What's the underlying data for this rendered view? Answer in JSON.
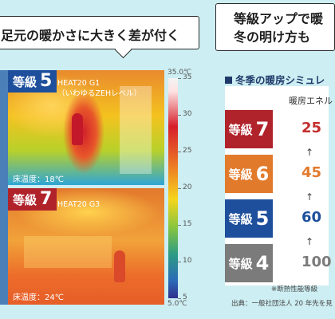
{
  "headline_left": "足元の暖かさに大きく差が付く",
  "headline_right": [
    "等級アップで暖",
    "冬の明け方も"
  ],
  "panels": [
    {
      "grade_prefix": "等級",
      "grade_num": "5",
      "label": [
        "HEAT20 G1",
        "（いわゆるZEHレベル）"
      ],
      "floor_temp": "床温度：18℃",
      "tag_color": "#1e4f9c"
    },
    {
      "grade_prefix": "等級",
      "grade_num": "7",
      "label": [
        "HEAT20 G3"
      ],
      "floor_temp": "床温度：24℃",
      "tag_color": "#b0232b"
    }
  ],
  "scale": {
    "max": "35.0℃",
    "min": "5.0℃",
    "ticks": [
      "35",
      "30",
      "25",
      "20",
      "15",
      "10",
      "5"
    ]
  },
  "simulation": {
    "title": "冬季の暖房シミュレ",
    "header": "暖房エネル",
    "rows": [
      {
        "prefix": "等級",
        "num": "7",
        "value": "25",
        "bg": "#b0232b",
        "fg": "#c42d2d"
      },
      {
        "prefix": "等級",
        "num": "6",
        "value": "45",
        "bg": "#e27a2c",
        "fg": "#e27a2c"
      },
      {
        "prefix": "等級",
        "num": "5",
        "value": "60",
        "bg": "#1e4f9c",
        "fg": "#1e4f9c"
      },
      {
        "prefix": "等級",
        "num": "4",
        "value": "100",
        "bg": "#7b7b7b",
        "fg": "#7b7b7b"
      }
    ],
    "arrow": "↑"
  },
  "notes": [
    "※断熱性能等級",
    "出典：一般社団法人 20 年先を見"
  ]
}
